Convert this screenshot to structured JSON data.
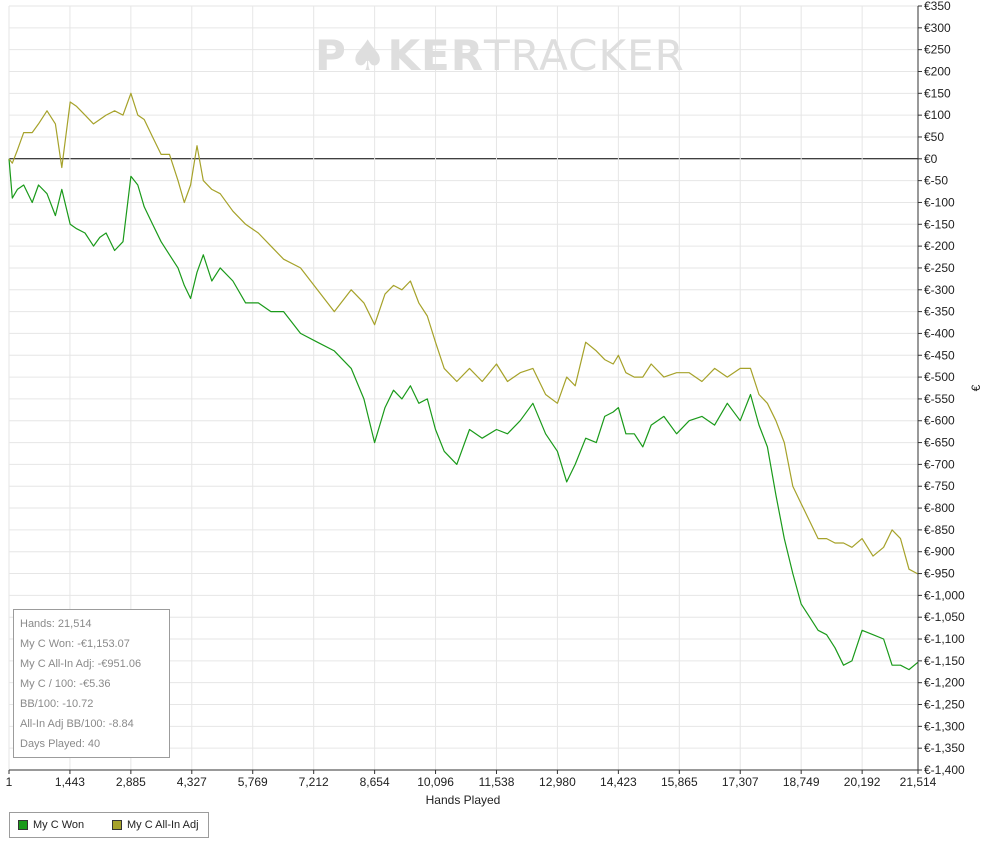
{
  "watermark": {
    "part1": "P",
    "part2": "KER",
    "part3": "TRACKER"
  },
  "colors": {
    "won": "#1a9a1a",
    "allin": "#a6a22a",
    "grid": "#e6e6e6",
    "zero": "#000000"
  },
  "stats": {
    "hands": "Hands: 21,514",
    "won": "My C Won: -€1,153.07",
    "allin": "My C All-In Adj: -€951.06",
    "per100": "My C / 100: -€5.36",
    "bb100": "BB/100: -10.72",
    "allin_bb100": "All-In Adj BB/100: -8.84",
    "days": "Days Played: 40"
  },
  "legend": {
    "won": "My C Won",
    "allin": "My C All-In Adj"
  },
  "chart_data": {
    "type": "line",
    "xlabel": "Hands Played",
    "ylabel": "€",
    "xlim": [
      1,
      21514
    ],
    "ylim": [
      -1400,
      350
    ],
    "x_ticks": [
      "1",
      "1,443",
      "2,885",
      "4,327",
      "5,769",
      "7,212",
      "8,654",
      "10,096",
      "11,538",
      "12,980",
      "14,423",
      "15,865",
      "17,307",
      "18,749",
      "20,192",
      "21,514"
    ],
    "x_tick_values": [
      1,
      1443,
      2885,
      4327,
      5769,
      7212,
      8654,
      10096,
      11538,
      12980,
      14423,
      15865,
      17307,
      18749,
      20192,
      21514
    ],
    "y_ticks": [
      "€350",
      "€300",
      "€250",
      "€200",
      "€150",
      "€100",
      "€50",
      "€0",
      "€-50",
      "€-100",
      "€-150",
      "€-200",
      "€-250",
      "€-300",
      "€-350",
      "€-400",
      "€-450",
      "€-500",
      "€-550",
      "€-600",
      "€-650",
      "€-700",
      "€-750",
      "€-800",
      "€-850",
      "€-900",
      "€-950",
      "€-1,000",
      "€-1,050",
      "€-1,100",
      "€-1,150",
      "€-1,200",
      "€-1,250",
      "€-1,300",
      "€-1,350",
      "€-1,400"
    ],
    "y_tick_values": [
      350,
      300,
      250,
      200,
      150,
      100,
      50,
      0,
      -50,
      -100,
      -150,
      -200,
      -250,
      -300,
      -350,
      -400,
      -450,
      -500,
      -550,
      -600,
      -650,
      -700,
      -750,
      -800,
      -850,
      -900,
      -950,
      -1000,
      -1050,
      -1100,
      -1150,
      -1200,
      -1250,
      -1300,
      -1350,
      -1400
    ],
    "grid": true,
    "legend_position": "bottom-left",
    "x": [
      1,
      80,
      200,
      350,
      550,
      700,
      900,
      1100,
      1250,
      1450,
      1600,
      1800,
      2000,
      2150,
      2300,
      2500,
      2700,
      2885,
      3050,
      3200,
      3400,
      3600,
      3800,
      4000,
      4150,
      4300,
      4450,
      4600,
      4800,
      5000,
      5300,
      5600,
      5900,
      6200,
      6500,
      6900,
      7300,
      7700,
      8100,
      8400,
      8654,
      8900,
      9100,
      9300,
      9500,
      9700,
      9900,
      10096,
      10300,
      10600,
      10900,
      11200,
      11538,
      11800,
      12100,
      12400,
      12700,
      12980,
      13200,
      13400,
      13650,
      13900,
      14100,
      14300,
      14423,
      14600,
      14800,
      15000,
      15200,
      15500,
      15800,
      16100,
      16400,
      16700,
      17000,
      17307,
      17550,
      17750,
      17950,
      18150,
      18349,
      18550,
      18749,
      18950,
      19150,
      19350,
      19550,
      19750,
      19950,
      20192,
      20450,
      20700,
      20900,
      21100,
      21300,
      21514
    ],
    "series": [
      {
        "name": "My C Won",
        "values": [
          0,
          -90,
          -70,
          -60,
          -100,
          -60,
          -80,
          -130,
          -70,
          -150,
          -160,
          -170,
          -200,
          -180,
          -170,
          -210,
          -190,
          -40,
          -60,
          -110,
          -150,
          -190,
          -220,
          -250,
          -290,
          -320,
          -260,
          -220,
          -280,
          -250,
          -280,
          -330,
          -330,
          -350,
          -350,
          -400,
          -420,
          -440,
          -480,
          -550,
          -650,
          -570,
          -530,
          -550,
          -520,
          -560,
          -550,
          -620,
          -670,
          -700,
          -620,
          -640,
          -620,
          -630,
          -600,
          -560,
          -630,
          -670,
          -740,
          -700,
          -640,
          -650,
          -590,
          -580,
          -570,
          -630,
          -630,
          -660,
          -610,
          -590,
          -630,
          -600,
          -590,
          -610,
          -560,
          -600,
          -540,
          -610,
          -660,
          -770,
          -870,
          -950,
          -1020,
          -1050,
          -1080,
          -1090,
          -1120,
          -1160,
          -1150,
          -1080,
          -1090,
          -1100,
          -1160,
          -1160,
          -1170,
          -1153
        ]
      },
      {
        "name": "My C All-In Adj",
        "values": [
          0,
          -10,
          20,
          60,
          60,
          80,
          110,
          80,
          -20,
          130,
          120,
          100,
          80,
          90,
          100,
          110,
          100,
          150,
          100,
          90,
          50,
          10,
          10,
          -50,
          -100,
          -60,
          30,
          -50,
          -70,
          -80,
          -120,
          -150,
          -170,
          -200,
          -230,
          -250,
          -300,
          -350,
          -300,
          -330,
          -380,
          -310,
          -290,
          -300,
          -280,
          -330,
          -360,
          -420,
          -480,
          -510,
          -480,
          -510,
          -470,
          -510,
          -490,
          -480,
          -540,
          -560,
          -500,
          -520,
          -420,
          -440,
          -460,
          -470,
          -450,
          -490,
          -500,
          -500,
          -470,
          -500,
          -490,
          -490,
          -510,
          -480,
          -500,
          -480,
          -480,
          -540,
          -560,
          -600,
          -650,
          -750,
          -790,
          -830,
          -870,
          -870,
          -880,
          -880,
          -890,
          -870,
          -910,
          -890,
          -850,
          -870,
          -940,
          -951
        ]
      }
    ]
  }
}
